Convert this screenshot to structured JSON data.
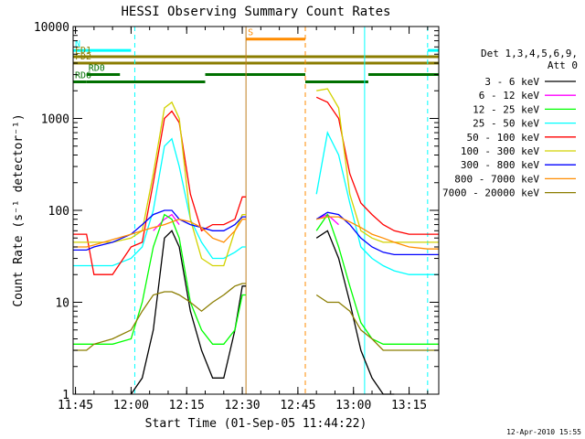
{
  "chart_data": {
    "type": "line",
    "title": "HESSI Observing Summary Count Rates",
    "xlabel": "Start Time (01-Sep-05 11:44:22)",
    "ylabel": "Count Rate (s⁻¹ detector⁻¹)",
    "ylog": true,
    "ylim": [
      1,
      10000
    ],
    "xlim": [
      "11:44:22",
      "13:23:00"
    ],
    "x_ticks": [
      "11:45",
      "12:00",
      "12:15",
      "12:30",
      "12:45",
      "13:00",
      "13:15"
    ],
    "y_ticks": [
      "1",
      "10",
      "100",
      "1000",
      "10000"
    ],
    "grid": false,
    "legend_position": "right",
    "legend_header": [
      "Det 1,3,4,5,6,9,",
      "Att 0"
    ],
    "timestamp": "12-Apr-2010 15:55",
    "x_times": [
      "11:44:22",
      "11:48",
      "11:50",
      "11:55",
      "12:00",
      "12:03",
      "12:06",
      "12:09",
      "12:11",
      "12:13",
      "12:16",
      "12:19",
      "12:22",
      "12:25",
      "12:28",
      "12:30",
      "12:31",
      "12:47",
      "12:50",
      "12:53",
      "12:56",
      "12:59",
      "13:02",
      "13:05",
      "13:08",
      "13:11",
      "13:15",
      "13:20",
      "13:23"
    ],
    "gap": [
      "12:31",
      "12:47"
    ],
    "series": [
      {
        "name": "3 - 6 keV",
        "color": "#000000",
        "values": [
          null,
          null,
          null,
          null,
          1,
          1.5,
          5,
          50,
          60,
          40,
          8,
          3,
          1.5,
          1.5,
          5,
          15,
          15,
          null,
          50,
          60,
          30,
          10,
          3,
          1.5,
          1,
          1,
          null,
          null,
          null
        ]
      },
      {
        "name": "6 - 12 keV",
        "color": "#ff00ff",
        "values": [
          null,
          null,
          null,
          null,
          null,
          null,
          60,
          80,
          90,
          70,
          null,
          null,
          null,
          null,
          null,
          null,
          null,
          null,
          80,
          90,
          70,
          null,
          null,
          null,
          null,
          null,
          null,
          null,
          null
        ]
      },
      {
        "name": "12 - 25 keV",
        "color": "#00ff00",
        "values": [
          3.5,
          3.5,
          3.5,
          3.5,
          4,
          10,
          40,
          90,
          80,
          50,
          10,
          5,
          3.5,
          3.5,
          5,
          12,
          12,
          null,
          60,
          90,
          40,
          15,
          6,
          4,
          3.5,
          3.5,
          3.5,
          3.5,
          3.5
        ]
      },
      {
        "name": "25 - 50 keV",
        "color": "#00ffff",
        "values": [
          25,
          25,
          25,
          25,
          30,
          40,
          100,
          500,
          600,
          300,
          80,
          45,
          30,
          30,
          35,
          40,
          40,
          null,
          150,
          700,
          400,
          120,
          40,
          30,
          25,
          22,
          20,
          20,
          20
        ]
      },
      {
        "name": "50 - 100 keV",
        "color": "#ff0000",
        "values": [
          55,
          55,
          20,
          20,
          40,
          45,
          200,
          1000,
          1200,
          900,
          150,
          60,
          70,
          70,
          80,
          140,
          140,
          null,
          1700,
          1500,
          1000,
          250,
          120,
          90,
          70,
          60,
          55,
          55,
          55
        ]
      },
      {
        "name": "100 - 300 keV",
        "color": "#d2d200",
        "values": [
          45,
          45,
          45,
          45,
          50,
          60,
          250,
          1300,
          1500,
          1000,
          80,
          30,
          25,
          25,
          60,
          90,
          90,
          null,
          2000,
          2100,
          1300,
          150,
          60,
          50,
          45,
          45,
          45,
          45,
          45
        ]
      },
      {
        "name": "300 - 800 keV",
        "color": "#0000ff",
        "values": [
          37,
          37,
          40,
          45,
          55,
          70,
          90,
          100,
          100,
          80,
          70,
          65,
          60,
          60,
          70,
          85,
          85,
          null,
          80,
          95,
          90,
          70,
          50,
          40,
          35,
          33,
          33,
          33,
          33
        ]
      },
      {
        "name": "800 - 7000 keV",
        "color": "#ff8c00",
        "values": [
          40,
          40,
          42,
          48,
          55,
          60,
          65,
          70,
          75,
          80,
          75,
          65,
          50,
          45,
          60,
          80,
          80,
          null,
          80,
          85,
          85,
          75,
          65,
          55,
          50,
          45,
          40,
          38,
          38
        ]
      },
      {
        "name": "7000 - 20000 keV",
        "color": "#8b7d00",
        "values": [
          3,
          3,
          3.5,
          4,
          5,
          8,
          12,
          13,
          13,
          12,
          10,
          8,
          10,
          12,
          15,
          16,
          16,
          null,
          12,
          10,
          10,
          8,
          5,
          4,
          3,
          3,
          3,
          3,
          3
        ]
      }
    ],
    "flags": [
      {
        "label": "N",
        "color": "#00ffff",
        "level": 5500,
        "start": "11:44:22",
        "end": "12:00"
      },
      {
        "label": "",
        "color": "#00ffff",
        "level": 5500,
        "start": "13:20",
        "end": "13:23"
      },
      {
        "label": "S",
        "color": "#ff8c00",
        "level": 7300,
        "start": "12:31",
        "end": "12:47"
      },
      {
        "label": "FD1",
        "color": "#8b7d00",
        "level": 4700,
        "start": "11:44:22",
        "end": "13:23:00"
      },
      {
        "label": "FD2",
        "color": "#8b7d00",
        "level": 4000,
        "start": "11:44:22",
        "end": "13:23:00"
      },
      {
        "label": "RD0",
        "color": "#007000",
        "level": 3000,
        "start": "11:48",
        "end": "11:57"
      },
      {
        "label": "RD6",
        "color": "#007000",
        "level": 2500,
        "start": "11:44:22",
        "end": "11:48"
      },
      {
        "label": "",
        "color": "#007000",
        "level": 2500,
        "start": "11:48",
        "end": "12:20"
      },
      {
        "label": "",
        "color": "#007000",
        "level": 3000,
        "start": "12:20",
        "end": "12:47"
      },
      {
        "label": "",
        "color": "#007000",
        "level": 2500,
        "start": "12:47",
        "end": "13:04"
      },
      {
        "label": "",
        "color": "#007000",
        "level": 3000,
        "start": "13:04",
        "end": "13:23:00"
      }
    ],
    "vlines": [
      {
        "time": "12:01",
        "color": "#00ffff",
        "dashed": true
      },
      {
        "time": "12:31",
        "color": "#c08020",
        "dashed": false
      },
      {
        "time": "12:47",
        "color": "#ff8c00",
        "dashed": true
      },
      {
        "time": "13:03",
        "color": "#00ffff",
        "dashed": false
      },
      {
        "time": "13:20",
        "color": "#00ffff",
        "dashed": true
      }
    ]
  }
}
